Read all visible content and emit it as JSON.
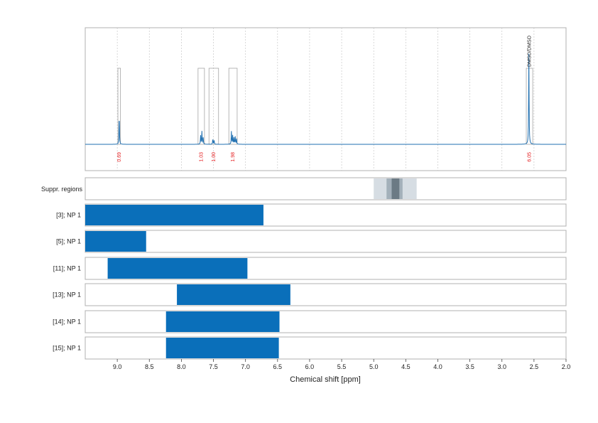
{
  "chart_data": {
    "type": "bar",
    "xlabel": "Chemical shift [ppm]",
    "xlim": [
      9.5,
      2.0
    ],
    "x_ticks": [
      "9.0",
      "8.5",
      "8.0",
      "7.5",
      "7.0",
      "6.5",
      "6.0",
      "5.5",
      "5.0",
      "4.5",
      "4.0",
      "3.5",
      "3.0",
      "2.5",
      "2.0"
    ],
    "x_tick_values": [
      9.0,
      8.5,
      8.0,
      7.5,
      7.0,
      6.5,
      6.0,
      5.5,
      5.0,
      4.5,
      4.0,
      3.5,
      3.0,
      2.5,
      2.0
    ],
    "grid": true,
    "spectrum": {
      "peaks": [
        {
          "shift": 8.97,
          "height": 0.27
        },
        {
          "shift": 7.7,
          "height": 0.08
        },
        {
          "shift": 7.68,
          "height": 0.12
        },
        {
          "shift": 7.66,
          "height": 0.06
        },
        {
          "shift": 7.51,
          "height": 0.05
        },
        {
          "shift": 7.49,
          "height": 0.04
        },
        {
          "shift": 7.22,
          "height": 0.12
        },
        {
          "shift": 7.2,
          "height": 0.08
        },
        {
          "shift": 7.18,
          "height": 0.06
        },
        {
          "shift": 7.16,
          "height": 0.07
        },
        {
          "shift": 7.14,
          "height": 0.05
        },
        {
          "shift": 2.58,
          "height": 0.85
        }
      ],
      "integrals": [
        {
          "from": 8.99,
          "to": 8.95,
          "label": "0.69"
        },
        {
          "from": 7.74,
          "to": 7.64,
          "label": "1.03"
        },
        {
          "from": 7.57,
          "to": 7.42,
          "label": "1.00"
        },
        {
          "from": 7.26,
          "to": 7.13,
          "label": "1.98"
        },
        {
          "from": 2.62,
          "to": 2.52,
          "label": "6.05"
        }
      ],
      "peak_annotation": {
        "shift": 2.57,
        "label": "DMSO/DMSO"
      }
    },
    "suppressed_regions": {
      "label": "Suppr. regions",
      "bands": [
        {
          "from": 5.0,
          "to": 4.33,
          "shade": "#d6dde3"
        },
        {
          "from": 4.8,
          "to": 4.55,
          "shade": "#a3b0ba"
        },
        {
          "from": 4.72,
          "to": 4.6,
          "shade": "#6b7a84"
        }
      ]
    },
    "series": [
      {
        "name": "[3]; NP 1",
        "from": 9.5,
        "to": 6.72
      },
      {
        "name": "[5]; NP 1",
        "from": 9.5,
        "to": 8.55
      },
      {
        "name": "[11]; NP 1",
        "from": 9.15,
        "to": 6.97
      },
      {
        "name": "[13]; NP 1",
        "from": 8.07,
        "to": 6.3
      },
      {
        "name": "[14]; NP 1",
        "from": 8.24,
        "to": 6.47
      },
      {
        "name": "[15]; NP 1",
        "from": 8.24,
        "to": 6.48
      }
    ],
    "colors": {
      "bar": "#0a6fba",
      "spectrum": "#1f6fb0",
      "integral_text": "#e41a1c",
      "frame": "#b0b0b0",
      "grid": "#c8c8c8"
    }
  }
}
